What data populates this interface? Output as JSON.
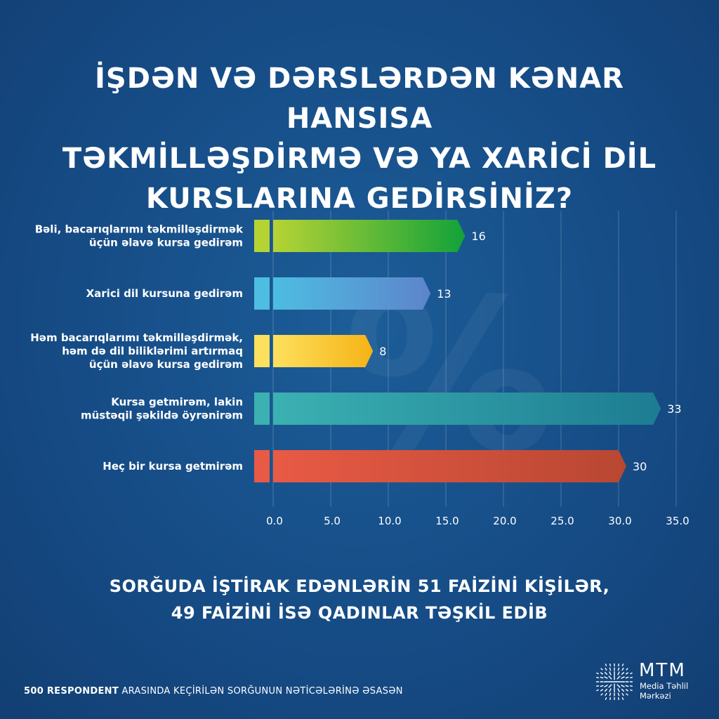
{
  "title_lines": [
    "İŞDƏN VƏ DƏRSLƏRDƏN KƏNAR HANSISA",
    "TƏKMİLLƏŞDİRMƏ VƏ YA XARİCİ DİL",
    "KURSLARINA GEDİRSİNİZ?"
  ],
  "chart_data": {
    "type": "bar",
    "orientation": "horizontal",
    "categories": [
      [
        "Bəli, bacarıqlarımı təkmilləşdirmək",
        "üçün əlavə kursa gedirəm"
      ],
      [
        "Xarici dil kursuna gedirəm"
      ],
      [
        "Həm bacarıqlarımı təkmilləşdirmək,",
        "həm də dil biliklərimi artırmaq",
        "üçün əlavə kursa gedirəm"
      ],
      [
        "Kursa getmirəm, lakin",
        "müstəqil şəkildə öyrənirəm"
      ],
      [
        "Heç bir kursa getmirəm"
      ]
    ],
    "values": [
      16,
      13,
      8,
      33,
      30
    ],
    "value_labels": [
      "16",
      "13",
      "8",
      "33",
      "30"
    ],
    "xlim": [
      0,
      35
    ],
    "ticks": [
      0,
      5,
      10,
      15,
      20,
      25,
      30,
      35
    ],
    "tick_labels": [
      "0.0",
      "5.0",
      "10.0",
      "15.0",
      "20.0",
      "25.0",
      "30.0",
      "35.0"
    ],
    "grid": true,
    "colors": [
      [
        "#b6d334",
        "#12a23a"
      ],
      [
        "#4dbde2",
        "#5d84cb"
      ],
      [
        "#fde05e",
        "#f6b316"
      ],
      [
        "#3bb1b2",
        "#1d7c92"
      ],
      [
        "#e85a45",
        "#b84732"
      ]
    ]
  },
  "subtitle_lines": [
    "SORĞUDA İŞTİRAK EDƏNLƏRİN 51 FAİZİNİ KİŞİLƏR,",
    "49 FAİZİNİ İSƏ QADINLAR TƏŞKİL EDİB"
  ],
  "footer": {
    "bold": "500 RESPONDENT",
    "rest": "ARASINDA KEÇİRİLƏN SORĞUNUN NƏTİCƏLƏRİNƏ ƏSASƏN"
  },
  "logo": {
    "name": "MTM",
    "sub_lines": [
      "Media Təhlil",
      "Mərkəzi"
    ]
  }
}
